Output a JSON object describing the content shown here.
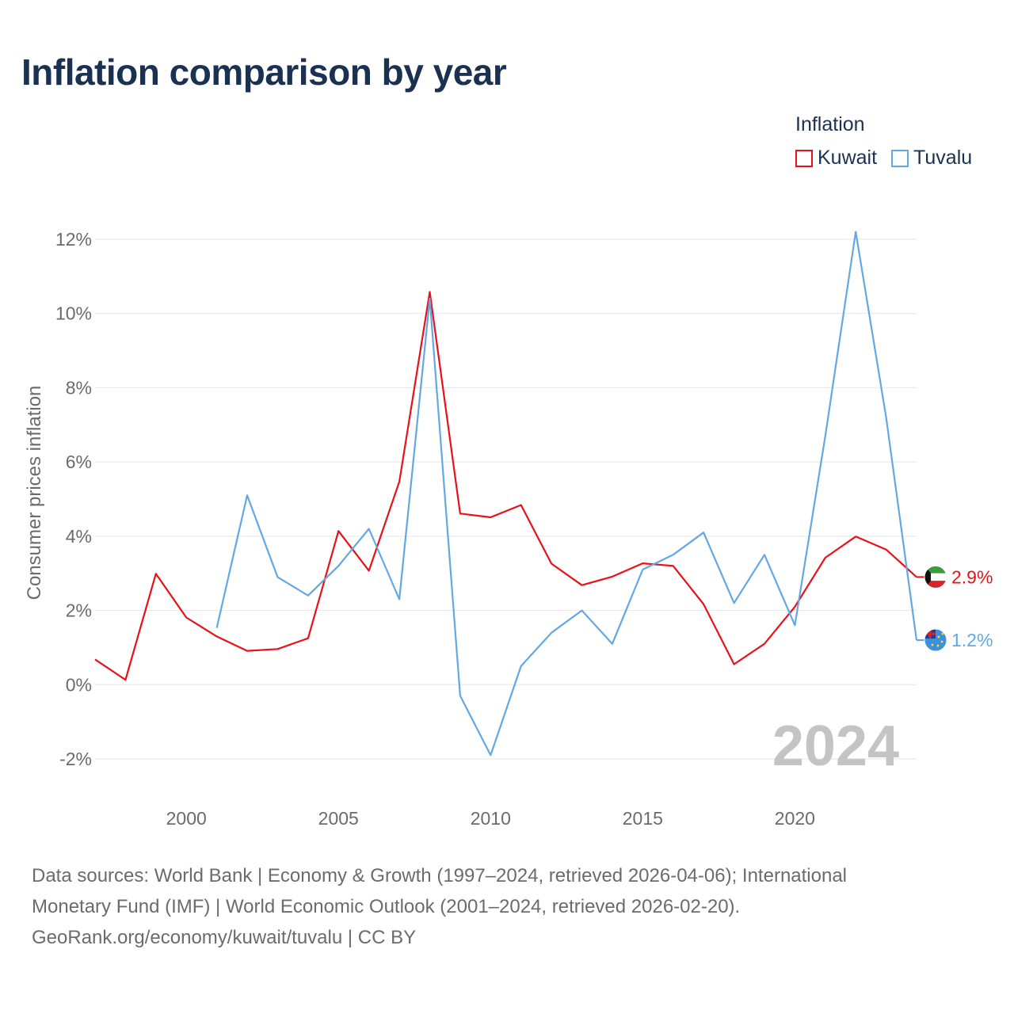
{
  "title": "Inflation comparison by year",
  "legend": {
    "title": "Inflation",
    "items": [
      {
        "name": "Kuwait",
        "color": "#e8111a"
      },
      {
        "name": "Tuvalu",
        "color": "#62a8e5"
      }
    ]
  },
  "year_watermark": "2024",
  "footer": {
    "line1": "Data sources: World Bank | Economy & Growth (1997–2024, retrieved 2026-04-06); International",
    "line2": "Monetary Fund (IMF) | World Economic Outlook (2001–2024, retrieved 2026-02-20).",
    "line3": "GeoRank.org/economy/kuwait/tuvalu | CC BY"
  },
  "chart_data": {
    "type": "line",
    "title": "Inflation comparison by year",
    "xlabel": "",
    "ylabel": "Consumer prices inflation",
    "xlim": [
      1997,
      2024
    ],
    "ylim": [
      -3,
      12.5
    ],
    "x_ticks": [
      2000,
      2005,
      2010,
      2015,
      2020
    ],
    "y_ticks": [
      -2,
      0,
      2,
      4,
      6,
      8,
      10,
      12
    ],
    "y_tick_labels": [
      "-2%",
      "0%",
      "2%",
      "4%",
      "6%",
      "8%",
      "10%",
      "12%"
    ],
    "grid": true,
    "legend_position": "top-right",
    "series": [
      {
        "name": "Kuwait",
        "color": "#e8111a",
        "end_label": "2.9%",
        "points": [
          [
            1997,
            0.68
          ],
          [
            1998,
            0.13
          ],
          [
            1999,
            2.99
          ],
          [
            2000,
            1.81
          ],
          [
            2001,
            1.3
          ],
          [
            2002,
            0.91
          ],
          [
            2003,
            0.96
          ],
          [
            2004,
            1.25
          ],
          [
            2005,
            4.14
          ],
          [
            2006,
            3.07
          ],
          [
            2007,
            5.47
          ],
          [
            2008,
            10.58
          ],
          [
            2009,
            4.61
          ],
          [
            2010,
            4.51
          ],
          [
            2011,
            4.84
          ],
          [
            2012,
            3.26
          ],
          [
            2013,
            2.68
          ],
          [
            2014,
            2.91
          ],
          [
            2015,
            3.27
          ],
          [
            2016,
            3.2
          ],
          [
            2017,
            2.17
          ],
          [
            2018,
            0.55
          ],
          [
            2019,
            1.1
          ],
          [
            2020,
            2.1
          ],
          [
            2021,
            3.42
          ],
          [
            2022,
            3.99
          ],
          [
            2023,
            3.64
          ],
          [
            2024,
            2.9
          ]
        ]
      },
      {
        "name": "Tuvalu",
        "color": "#62a8e5",
        "end_label": "1.2%",
        "points": [
          [
            2001,
            1.53
          ],
          [
            2002,
            5.1
          ],
          [
            2003,
            2.9
          ],
          [
            2004,
            2.4
          ],
          [
            2005,
            3.2
          ],
          [
            2006,
            4.2
          ],
          [
            2007,
            2.3
          ],
          [
            2008,
            10.4
          ],
          [
            2009,
            -0.3
          ],
          [
            2010,
            -1.9
          ],
          [
            2011,
            0.5
          ],
          [
            2012,
            1.4
          ],
          [
            2013,
            2.0
          ],
          [
            2014,
            1.1
          ],
          [
            2015,
            3.1
          ],
          [
            2016,
            3.5
          ],
          [
            2017,
            4.1
          ],
          [
            2018,
            2.2
          ],
          [
            2019,
            3.5
          ],
          [
            2020,
            1.6
          ],
          [
            2021,
            6.7
          ],
          [
            2022,
            12.2
          ],
          [
            2023,
            7.2
          ],
          [
            2024,
            1.2
          ]
        ]
      }
    ]
  }
}
